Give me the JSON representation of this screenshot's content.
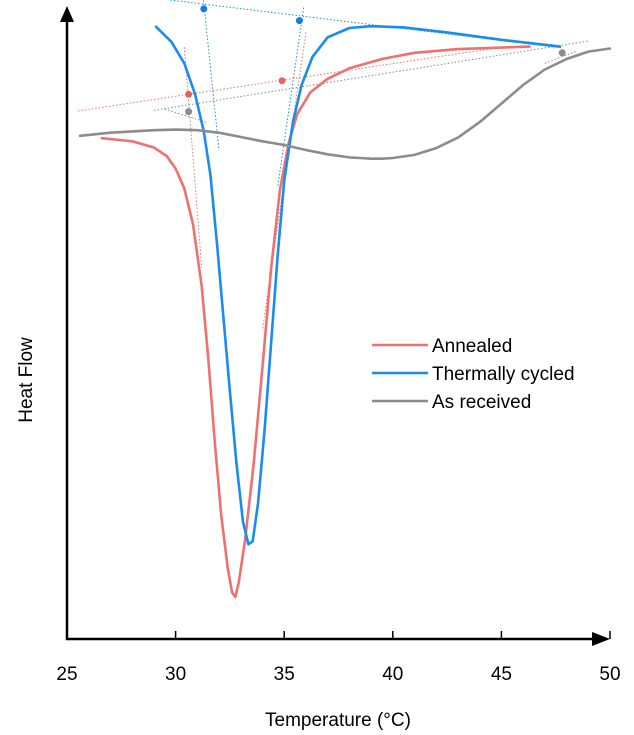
{
  "chart_data": {
    "type": "line",
    "title": "",
    "xlabel": "Temperature (°C)",
    "ylabel": "Heat Flow",
    "xlim": [
      25,
      50
    ],
    "ylim": [
      0,
      100
    ],
    "xticks": [
      25,
      30,
      35,
      40,
      45,
      50
    ],
    "yticks_shown": false,
    "grid": false,
    "legend": {
      "placement": "center-right",
      "entries": [
        "Annealed",
        "Thermally cycled",
        "As received"
      ]
    },
    "series": [
      {
        "name": "Annealed",
        "color": "#f07070",
        "x": [
          26.6,
          28.0,
          29.0,
          29.6,
          30.0,
          30.4,
          30.8,
          31.2,
          31.5,
          31.8,
          32.1,
          32.4,
          32.6,
          32.75,
          32.9,
          33.2,
          33.6,
          34.0,
          34.4,
          34.8,
          35.2,
          35.6,
          36.2,
          37.0,
          38.0,
          39.5,
          41.0,
          43.0,
          46.3
        ],
        "y": [
          80.9,
          80.4,
          79.4,
          78.0,
          76.0,
          72.8,
          67.0,
          57.0,
          45.5,
          32.0,
          20.0,
          11.5,
          7.5,
          6.8,
          9.0,
          16.0,
          28.5,
          44.0,
          60.0,
          72.5,
          80.0,
          84.8,
          88.3,
          90.5,
          92.2,
          93.7,
          94.7,
          95.3,
          95.7
        ]
      },
      {
        "name": "Thermally cycled",
        "color": "#1a8cf0",
        "x": [
          29.1,
          29.8,
          30.4,
          30.9,
          31.3,
          31.6,
          31.9,
          32.2,
          32.5,
          32.8,
          33.1,
          33.35,
          33.55,
          33.8,
          34.1,
          34.4,
          34.7,
          35.0,
          35.4,
          35.8,
          36.3,
          37.0,
          38.0,
          39.0,
          40.5,
          42.5,
          45.0,
          47.7
        ],
        "y": [
          98.9,
          96.5,
          93.0,
          88.0,
          82.0,
          75.0,
          64.0,
          52.0,
          40.0,
          28.5,
          19.0,
          15.3,
          15.8,
          22.0,
          34.0,
          48.0,
          62.0,
          74.0,
          83.5,
          89.5,
          94.0,
          97.2,
          98.7,
          99.0,
          98.8,
          98.0,
          96.8,
          95.7
        ]
      },
      {
        "name": "As received",
        "color": "#8c8c8c",
        "x": [
          25.6,
          27.0,
          28.0,
          29.0,
          30.0,
          31.0,
          32.0,
          33.0,
          34.0,
          35.0,
          36.0,
          37.0,
          38.0,
          38.5,
          39.0,
          39.5,
          40.0,
          41.0,
          42.0,
          43.0,
          44.0,
          45.0,
          46.0,
          47.0,
          48.0,
          49.0,
          50.0
        ],
        "y": [
          81.3,
          81.8,
          82.0,
          82.2,
          82.3,
          82.2,
          81.8,
          81.1,
          80.4,
          79.8,
          79.0,
          78.3,
          77.8,
          77.7,
          77.6,
          77.6,
          77.7,
          78.2,
          79.3,
          81.0,
          83.5,
          86.5,
          89.5,
          92.0,
          93.7,
          94.9,
          95.4
        ]
      }
    ],
    "tangent_lines": [
      {
        "series": "Annealed",
        "color": "#f07070",
        "points": [
          [
            25.5,
            85.3
          ],
          [
            45.0,
            95.6
          ]
        ]
      },
      {
        "series": "Annealed",
        "color": "#f07070",
        "points": [
          [
            30.4,
            95.6
          ],
          [
            31.2,
            60.0
          ]
        ]
      },
      {
        "series": "Annealed",
        "color": "#f07070",
        "points": [
          [
            36.0,
            98.0
          ],
          [
            34.0,
            50.0
          ]
        ]
      },
      {
        "series": "Thermally cycled",
        "color": "#1a8cf0",
        "points": [
          [
            25.6,
            105.0
          ],
          [
            47.8,
            95.5
          ]
        ]
      },
      {
        "series": "Thermally cycled",
        "color": "#1a8cf0",
        "points": [
          [
            31.2,
            106.0
          ],
          [
            32.0,
            79.0
          ]
        ]
      },
      {
        "series": "Thermally cycled",
        "color": "#1a8cf0",
        "points": [
          [
            35.9,
            102.0
          ],
          [
            34.7,
            73.0
          ]
        ]
      },
      {
        "series": "As received",
        "color": "#8c8c8c",
        "points": [
          [
            29.0,
            85.4
          ],
          [
            49.0,
            96.6
          ]
        ]
      },
      {
        "series": "As received",
        "color": "#8c8c8c",
        "points": [
          [
            29.5,
            85.6
          ],
          [
            31.5,
            83.4
          ]
        ]
      },
      {
        "series": "As received",
        "color": "#8c8c8c",
        "points": [
          [
            47.0,
            93.0
          ],
          [
            48.5,
            95.0
          ]
        ]
      }
    ],
    "onset_points": [
      {
        "series": "Annealed",
        "color": "#e86060",
        "x": 30.6,
        "y": 88.0
      },
      {
        "series": "Annealed",
        "color": "#e86060",
        "x": 34.9,
        "y": 90.2
      },
      {
        "series": "Thermally cycled",
        "color": "#1a7ae8",
        "x": 31.3,
        "y": 101.8
      },
      {
        "series": "Thermally cycled",
        "color": "#1a7ae8",
        "x": 35.7,
        "y": 99.9
      },
      {
        "series": "As received",
        "color": "#8c8c8c",
        "x": 30.6,
        "y": 85.2
      },
      {
        "series": "As received",
        "color": "#8c8c8c",
        "x": 47.8,
        "y": 94.7
      }
    ]
  }
}
